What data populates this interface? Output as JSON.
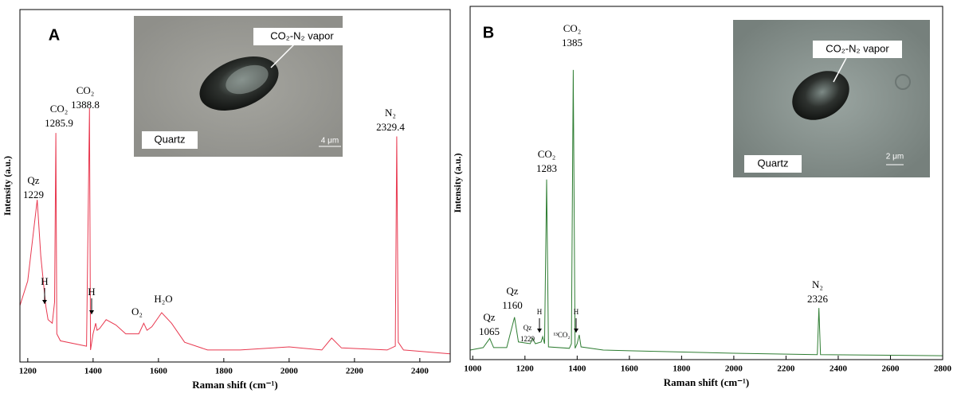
{
  "chart_data": [
    {
      "type": "line",
      "panel": "A",
      "x_label": "Raman shift (cm⁻¹)",
      "y_label": "Intensity (a.u.)",
      "color": "#e8384f",
      "xlim": [
        1176,
        2493
      ],
      "xticks": [
        1200,
        1400,
        1600,
        1800,
        2000,
        2200,
        2400
      ],
      "ylim": [
        0,
        100
      ],
      "x": [
        1176,
        1200,
        1215,
        1229,
        1240,
        1255,
        1262,
        1275,
        1282,
        1285.9,
        1289,
        1300,
        1380,
        1388.8,
        1392,
        1400,
        1408,
        1412,
        1420,
        1440,
        1470,
        1500,
        1540,
        1555,
        1565,
        1580,
        1610,
        1640,
        1680,
        1750,
        1850,
        2000,
        2100,
        2130,
        2160,
        2300,
        2325,
        2329.4,
        2334,
        2350,
        2493
      ],
      "values": [
        16,
        23,
        35,
        46,
        30,
        16,
        12,
        11,
        17,
        65,
        8,
        6,
        4.5,
        72,
        3.4,
        8,
        11,
        9,
        9.5,
        12,
        10.5,
        8,
        8,
        11,
        9,
        10,
        14,
        11,
        5.6,
        3.4,
        3.4,
        4.3,
        3.4,
        6.8,
        4,
        3.4,
        4.5,
        64,
        5.6,
        3.4,
        2.3
      ],
      "annotations": [
        {
          "lines": [
            "CO₂",
            "1388.8"
          ]
        },
        {
          "lines": [
            "CO₂",
            "1285.9"
          ]
        },
        {
          "lines": [
            "Qz",
            "1229"
          ]
        },
        {
          "lines": [
            "H"
          ]
        },
        {
          "lines": [
            "H"
          ]
        },
        {
          "lines": [
            "O₂"
          ]
        },
        {
          "lines": [
            "H₂O"
          ]
        },
        {
          "lines": [
            "N₂",
            "2329.4"
          ]
        }
      ],
      "inset": {
        "target": "CO₂-N₂ vapor",
        "host": "Quartz",
        "scale": "4 μm"
      }
    },
    {
      "type": "line",
      "panel": "B",
      "x_label": "Raman shift (cm⁻¹)",
      "y_label": "Intensity (a.u.)",
      "color": "#2e7d32",
      "xlim": [
        990,
        2800
      ],
      "xticks": [
        1000,
        1200,
        1400,
        1600,
        1800,
        2000,
        2200,
        2400,
        2600,
        2800
      ],
      "ylim": [
        0,
        100
      ],
      "x": [
        990,
        1040,
        1065,
        1080,
        1130,
        1160,
        1175,
        1220,
        1229,
        1240,
        1262,
        1268,
        1275,
        1283,
        1290,
        1370,
        1378,
        1385,
        1392,
        1400,
        1408,
        1415,
        1500,
        1600,
        2000,
        2320,
        2326,
        2332,
        2800
      ],
      "values": [
        2.7,
        3.4,
        6,
        3.4,
        3.4,
        12,
        5,
        4.5,
        6,
        4.5,
        5,
        6.5,
        4.5,
        51,
        3.6,
        3.2,
        4.5,
        82,
        3.2,
        4.5,
        7,
        3.6,
        2.7,
        2.5,
        1.8,
        1.4,
        14.6,
        1.4,
        1.1
      ],
      "annotations": [
        {
          "lines": [
            "CO₂",
            "1385"
          ]
        },
        {
          "lines": [
            "CO₂",
            "1283"
          ]
        },
        {
          "lines": [
            "Qz",
            "1160"
          ]
        },
        {
          "lines": [
            "Qz",
            "1065"
          ]
        },
        {
          "lines": [
            "Qz",
            "1229"
          ]
        },
        {
          "lines": [
            "H"
          ]
        },
        {
          "lines": [
            "H"
          ]
        },
        {
          "lines": [
            "¹³CO₂"
          ]
        },
        {
          "lines": [
            "N₂",
            "2326"
          ]
        }
      ],
      "inset": {
        "target": "CO₂-N₂ vapor",
        "host": "Quartz",
        "scale": "2 μm"
      }
    }
  ]
}
